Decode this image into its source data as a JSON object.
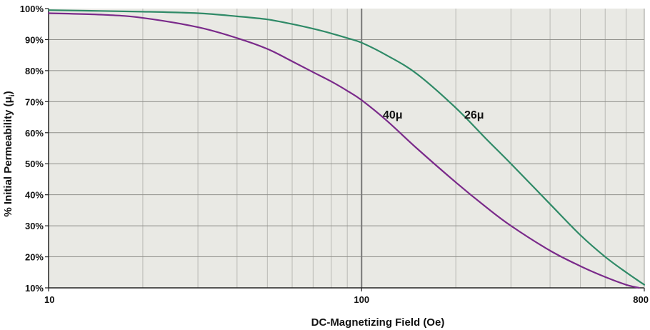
{
  "chart_data": {
    "type": "line",
    "xlabel": "DC-Magnetizing Field (Oe)",
    "ylabel": "% Initial Permeability (μ",
    "ylabel_sub": "i",
    "ylabel_close": ")",
    "x_scale": "log",
    "xlim": [
      10,
      800
    ],
    "ylim": [
      10,
      100
    ],
    "x_ticks": [
      {
        "value": 10,
        "label": "10"
      },
      {
        "value": 100,
        "label": "100"
      },
      {
        "value": 800,
        "label": "800"
      }
    ],
    "y_ticks": [
      {
        "value": 10,
        "label": "10%"
      },
      {
        "value": 20,
        "label": "20%"
      },
      {
        "value": 30,
        "label": "30%"
      },
      {
        "value": 40,
        "label": "40%"
      },
      {
        "value": 50,
        "label": "50%"
      },
      {
        "value": 60,
        "label": "60%"
      },
      {
        "value": 70,
        "label": "70%"
      },
      {
        "value": 80,
        "label": "80%"
      },
      {
        "value": 90,
        "label": "90%"
      },
      {
        "value": 100,
        "label": "100%"
      }
    ],
    "grid": true,
    "colors": {
      "plot_background": "#e9e9e4",
      "grid": "#b9b9b4",
      "major_grid": "#777777",
      "axis": "#222222"
    },
    "series": [
      {
        "name": "40μ",
        "color": "#7a2a8a",
        "x": [
          10,
          15,
          20,
          30,
          40,
          50,
          60,
          70,
          80,
          90,
          100,
          120,
          150,
          200,
          250,
          300,
          400,
          500,
          600,
          700,
          770
        ],
        "y": [
          98.5,
          98,
          97,
          94,
          90.5,
          87,
          83,
          79.5,
          76.5,
          73.5,
          70.5,
          64,
          55,
          44,
          36,
          30,
          22,
          17,
          13.5,
          11,
          10
        ]
      },
      {
        "name": "26μ",
        "color": "#2f8a67",
        "x": [
          10,
          20,
          30,
          40,
          50,
          60,
          70,
          80,
          90,
          100,
          120,
          150,
          200,
          250,
          300,
          400,
          500,
          600,
          700,
          800
        ],
        "y": [
          99.5,
          99,
          98.5,
          97.5,
          96.5,
          95,
          93.5,
          92,
          90.5,
          89,
          85,
          79,
          68,
          58,
          50,
          37,
          27,
          20,
          15,
          11
        ]
      }
    ]
  }
}
